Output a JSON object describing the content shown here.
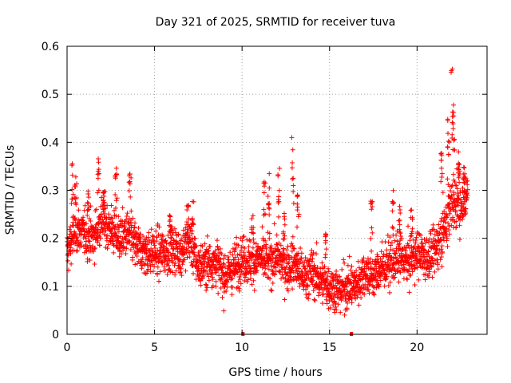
{
  "chart_data": {
    "type": "scatter",
    "title": "Day 321 of 2025, SRMTID for receiver tuva",
    "xlabel": "GPS time / hours",
    "ylabel": "SRMTID / TECUs",
    "xlim": [
      0,
      24
    ],
    "ylim": [
      0,
      0.6
    ],
    "x_ticks": [
      0,
      5,
      10,
      15,
      20
    ],
    "x_tick_labels": [
      "0",
      "5",
      "10",
      "15",
      "20"
    ],
    "y_ticks": [
      0,
      0.1,
      0.2,
      0.3,
      0.4,
      0.5,
      0.6
    ],
    "y_tick_labels": [
      "0",
      "0.1",
      "0.2",
      "0.3",
      "0.4",
      "0.5",
      "0.6"
    ],
    "grid": true,
    "marker": "plus",
    "color": "#ff0000",
    "zero_markers": [
      10.05,
      16.25
    ],
    "trend": {
      "x": [
        0,
        0.5,
        1,
        1.5,
        2,
        2.5,
        3,
        3.5,
        4,
        4.5,
        5,
        5.5,
        6,
        6.5,
        7,
        7.5,
        8,
        8.5,
        9,
        9.5,
        10,
        10.5,
        11,
        11.5,
        12,
        12.5,
        13,
        13.5,
        14,
        14.5,
        15,
        15.5,
        16,
        16.5,
        17,
        17.5,
        18,
        18.5,
        19,
        19.5,
        20,
        20.5,
        21,
        21.5,
        22,
        22.5,
        22.9
      ],
      "y": [
        0.17,
        0.22,
        0.21,
        0.2,
        0.24,
        0.22,
        0.2,
        0.21,
        0.18,
        0.17,
        0.17,
        0.17,
        0.18,
        0.17,
        0.2,
        0.14,
        0.15,
        0.15,
        0.12,
        0.14,
        0.16,
        0.15,
        0.16,
        0.15,
        0.16,
        0.14,
        0.15,
        0.12,
        0.13,
        0.11,
        0.1,
        0.09,
        0.1,
        0.1,
        0.13,
        0.12,
        0.14,
        0.15,
        0.16,
        0.15,
        0.17,
        0.16,
        0.17,
        0.22,
        0.28,
        0.27,
        0.3
      ]
    },
    "spikes": [
      {
        "x": 0.3,
        "y": 0.36
      },
      {
        "x": 0.5,
        "y": 0.33
      },
      {
        "x": 1.2,
        "y": 0.31
      },
      {
        "x": 1.8,
        "y": 0.37
      },
      {
        "x": 2.1,
        "y": 0.3
      },
      {
        "x": 2.8,
        "y": 0.35
      },
      {
        "x": 3.6,
        "y": 0.35
      },
      {
        "x": 5.9,
        "y": 0.25
      },
      {
        "x": 6.9,
        "y": 0.27
      },
      {
        "x": 7.2,
        "y": 0.28
      },
      {
        "x": 10.6,
        "y": 0.25
      },
      {
        "x": 11.3,
        "y": 0.32
      },
      {
        "x": 11.5,
        "y": 0.36
      },
      {
        "x": 12.1,
        "y": 0.35
      },
      {
        "x": 12.4,
        "y": 0.26
      },
      {
        "x": 12.9,
        "y": 0.42
      },
      {
        "x": 13.2,
        "y": 0.3
      },
      {
        "x": 14.8,
        "y": 0.21
      },
      {
        "x": 17.4,
        "y": 0.28
      },
      {
        "x": 18.6,
        "y": 0.3
      },
      {
        "x": 19.0,
        "y": 0.27
      },
      {
        "x": 19.7,
        "y": 0.26
      },
      {
        "x": 21.4,
        "y": 0.38
      },
      {
        "x": 21.8,
        "y": 0.45
      },
      {
        "x": 22.0,
        "y": 0.56
      },
      {
        "x": 22.1,
        "y": 0.48
      },
      {
        "x": 22.4,
        "y": 0.4
      },
      {
        "x": 22.7,
        "y": 0.35
      }
    ]
  }
}
